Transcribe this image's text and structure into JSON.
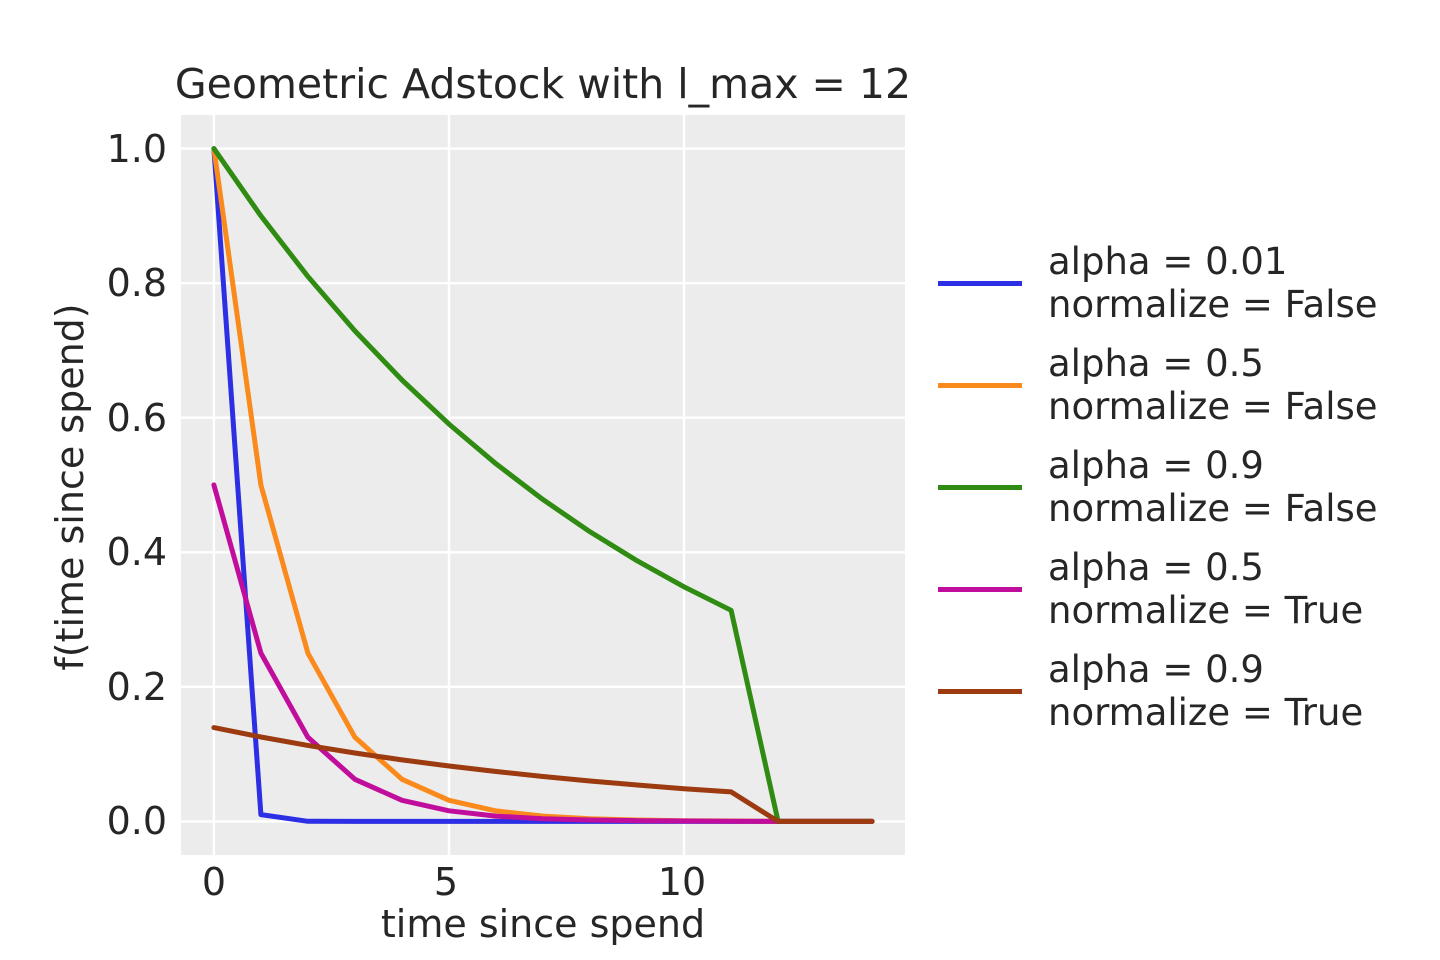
{
  "title": "Geometric Adstock with l_max = 12",
  "axes": {
    "xlabel": "time since spend",
    "ylabel": "f(time since spend)",
    "xticks": [
      "0",
      "5",
      "10"
    ],
    "yticks": [
      "1.0",
      "0.8",
      "0.6",
      "0.4",
      "0.2",
      "0.0"
    ]
  },
  "colors": {
    "plot_bg": "#ECECEC",
    "grid": "#FFFFFF",
    "text": "#262626",
    "blue": "#2D2FE4",
    "orange": "#FB8A1D",
    "green": "#2F8B11",
    "magenta": "#C10D9B",
    "brown": "#9C3A10"
  },
  "chart_data": {
    "type": "line",
    "title": "Geometric Adstock with l_max = 12",
    "xlabel": "time since spend",
    "ylabel": "f(time since spend)",
    "x": [
      0,
      1,
      2,
      3,
      4,
      5,
      6,
      7,
      8,
      9,
      10,
      11,
      12,
      13,
      14
    ],
    "xlim": [
      -0.7,
      14.7
    ],
    "ylim": [
      -0.05,
      1.05
    ],
    "xtick_values": [
      0,
      5,
      10
    ],
    "ytick_values": [
      1.0,
      0.8,
      0.6,
      0.4,
      0.2,
      0.0
    ],
    "grid": true,
    "legend_position": "outside center right",
    "series": [
      {
        "name": "alpha = 0.01 normalize = False",
        "color": "#2D2FE4",
        "values": [
          1.0,
          0.01,
          0.0001,
          1e-06,
          0,
          0,
          0,
          0,
          0,
          0,
          0,
          0,
          0,
          0,
          0
        ]
      },
      {
        "name": "alpha = 0.5 normalize = False",
        "color": "#FB8A1D",
        "values": [
          1.0,
          0.5,
          0.25,
          0.125,
          0.0625,
          0.03125,
          0.015625,
          0.0078125,
          0.00390625,
          0.00195313,
          0.00097656,
          0.00048828,
          0,
          0,
          0
        ]
      },
      {
        "name": "alpha = 0.9 normalize = False",
        "color": "#2F8B11",
        "values": [
          1.0,
          0.9,
          0.81,
          0.729,
          0.6561,
          0.59049,
          0.531441,
          0.4782969,
          0.43046721,
          0.38742049,
          0.34867844,
          0.3138106,
          0,
          0,
          0
        ]
      },
      {
        "name": "alpha = 0.5 normalize = True",
        "color": "#C10D9B",
        "values": [
          0.500122,
          0.250061,
          0.125031,
          0.062515,
          0.031258,
          0.015629,
          0.007814,
          0.003907,
          0.001954,
          0.000977,
          0.000488,
          0.000244,
          0,
          0,
          0
        ]
      },
      {
        "name": "alpha = 0.9 normalize = True",
        "color": "#9C3A10",
        "values": [
          0.139359,
          0.125423,
          0.11288,
          0.101592,
          0.091433,
          0.08229,
          0.074061,
          0.066655,
          0.059989,
          0.05399,
          0.048591,
          0.043732,
          0,
          0,
          0
        ]
      }
    ]
  },
  "legend": {
    "entries": [
      {
        "line1": "alpha = 0.01",
        "line2": "normalize = False",
        "color": "#2D2FE4"
      },
      {
        "line1": "alpha = 0.5",
        "line2": "normalize = False",
        "color": "#FB8A1D"
      },
      {
        "line1": "alpha = 0.9",
        "line2": "normalize = False",
        "color": "#2F8B11"
      },
      {
        "line1": "alpha = 0.5",
        "line2": "normalize = True",
        "color": "#C10D9B"
      },
      {
        "line1": "alpha = 0.9",
        "line2": "normalize = True",
        "color": "#9C3A10"
      }
    ]
  }
}
